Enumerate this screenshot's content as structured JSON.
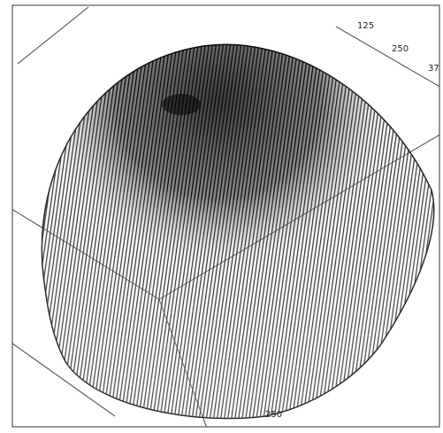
{
  "plot": {
    "tick_labels": [
      {
        "text": "125"
      },
      {
        "text": "250"
      },
      {
        "text": "37"
      },
      {
        "text": "250"
      }
    ]
  }
}
